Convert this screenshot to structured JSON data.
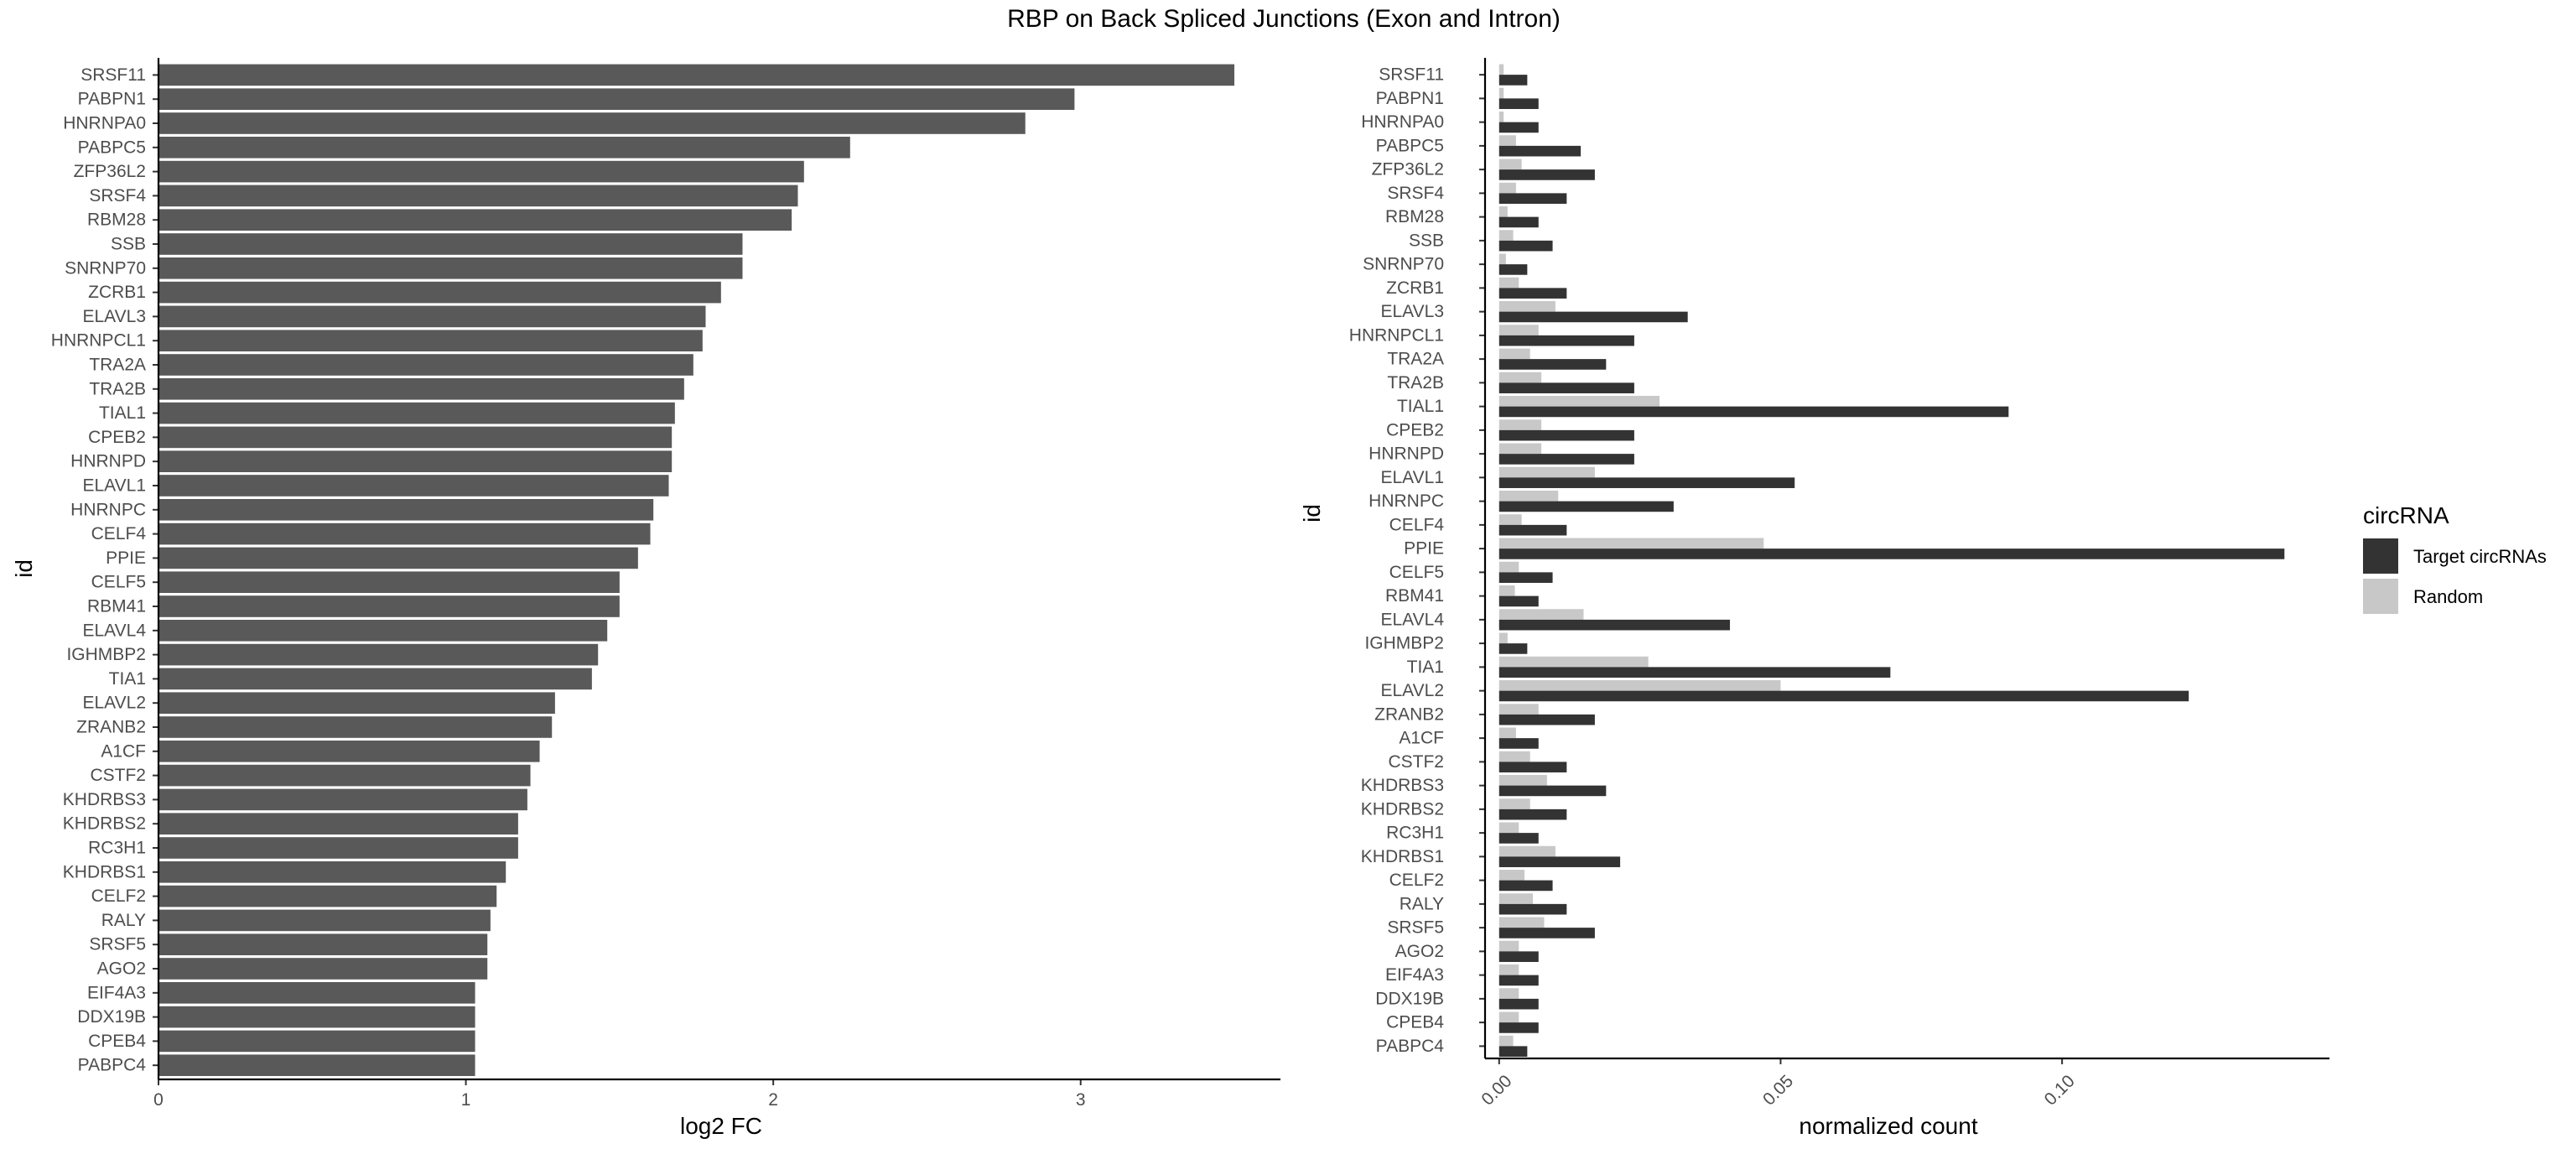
{
  "chart_data": [
    {
      "type": "bar",
      "orientation": "horizontal",
      "title": "RBP on Back Spliced Junctions (Exon and Intron)",
      "xlabel": "log2 FC",
      "ylabel": "id",
      "xlim": [
        0,
        3.65
      ],
      "x_ticks": [
        0,
        1,
        2,
        3
      ],
      "x_tick_labels": [
        "0",
        "1",
        "2",
        "3"
      ],
      "grid": false,
      "categories": [
        "SRSF11",
        "PABPN1",
        "HNRNPA0",
        "PABPC5",
        "ZFP36L2",
        "SRSF4",
        "RBM28",
        "SSB",
        "SNRNP70",
        "ZCRB1",
        "ELAVL3",
        "HNRNPCL1",
        "TRA2A",
        "TRA2B",
        "TIAL1",
        "CPEB2",
        "HNRNPD",
        "ELAVL1",
        "HNRNPC",
        "CELF4",
        "PPIE",
        "CELF5",
        "RBM41",
        "ELAVL4",
        "IGHMBP2",
        "TIA1",
        "ELAVL2",
        "ZRANB2",
        "A1CF",
        "CSTF2",
        "KHDRBS3",
        "KHDRBS2",
        "RC3H1",
        "KHDRBS1",
        "CELF2",
        "RALY",
        "SRSF5",
        "AGO2",
        "EIF4A3",
        "DDX19B",
        "CPEB4",
        "PABPC4"
      ],
      "values": [
        3.5,
        2.98,
        2.82,
        2.25,
        2.1,
        2.08,
        2.06,
        1.9,
        1.9,
        1.83,
        1.78,
        1.77,
        1.74,
        1.71,
        1.68,
        1.67,
        1.67,
        1.66,
        1.61,
        1.6,
        1.56,
        1.5,
        1.5,
        1.46,
        1.43,
        1.41,
        1.29,
        1.28,
        1.24,
        1.21,
        1.2,
        1.17,
        1.17,
        1.13,
        1.1,
        1.08,
        1.07,
        1.07,
        1.03,
        1.03,
        1.03,
        1.03
      ],
      "colors": {
        "bar": "#595959"
      }
    },
    {
      "type": "bar",
      "orientation": "horizontal",
      "xlabel": "normalized count",
      "ylabel": "id",
      "xlim": [
        -0.0025,
        0.1475
      ],
      "x_ticks": [
        0,
        0.05,
        0.1
      ],
      "x_tick_labels": [
        "0.00",
        "0.05",
        "0.10"
      ],
      "grid": false,
      "legend": {
        "title": "circRNA",
        "position": "right"
      },
      "categories": [
        "SRSF11",
        "PABPN1",
        "HNRNPA0",
        "PABPC5",
        "ZFP36L2",
        "SRSF4",
        "RBM28",
        "SSB",
        "SNRNP70",
        "ZCRB1",
        "ELAVL3",
        "HNRNPCL1",
        "TRA2A",
        "TRA2B",
        "TIAL1",
        "CPEB2",
        "HNRNPD",
        "ELAVL1",
        "HNRNPC",
        "CELF4",
        "PPIE",
        "CELF5",
        "RBM41",
        "ELAVL4",
        "IGHMBP2",
        "TIA1",
        "ELAVL2",
        "ZRANB2",
        "A1CF",
        "CSTF2",
        "KHDRBS3",
        "KHDRBS2",
        "RC3H1",
        "KHDRBS1",
        "CELF2",
        "RALY",
        "SRSF5",
        "AGO2",
        "EIF4A3",
        "DDX19B",
        "CPEB4",
        "PABPC4"
      ],
      "series": [
        {
          "name": "Target circRNAs",
          "color": "#333333",
          "values": [
            0.005,
            0.007,
            0.007,
            0.0145,
            0.017,
            0.012,
            0.007,
            0.0095,
            0.005,
            0.012,
            0.0335,
            0.024,
            0.019,
            0.024,
            0.0905,
            0.024,
            0.024,
            0.0525,
            0.031,
            0.012,
            0.1395,
            0.0095,
            0.007,
            0.041,
            0.005,
            0.0695,
            0.1225,
            0.017,
            0.007,
            0.012,
            0.019,
            0.012,
            0.007,
            0.0215,
            0.0095,
            0.012,
            0.017,
            0.007,
            0.007,
            0.007,
            0.007,
            0.005
          ]
        },
        {
          "name": "Random",
          "color": "#c8c8c8",
          "values": [
            0.0008,
            0.0008,
            0.0008,
            0.003,
            0.004,
            0.003,
            0.0015,
            0.0025,
            0.0012,
            0.0035,
            0.01,
            0.007,
            0.0055,
            0.0075,
            0.0285,
            0.0075,
            0.0075,
            0.017,
            0.0105,
            0.004,
            0.047,
            0.0035,
            0.0028,
            0.015,
            0.0015,
            0.0265,
            0.05,
            0.007,
            0.003,
            0.0055,
            0.0085,
            0.0055,
            0.0035,
            0.01,
            0.0045,
            0.006,
            0.008,
            0.0035,
            0.0035,
            0.0035,
            0.0035,
            0.0025
          ]
        }
      ]
    }
  ]
}
